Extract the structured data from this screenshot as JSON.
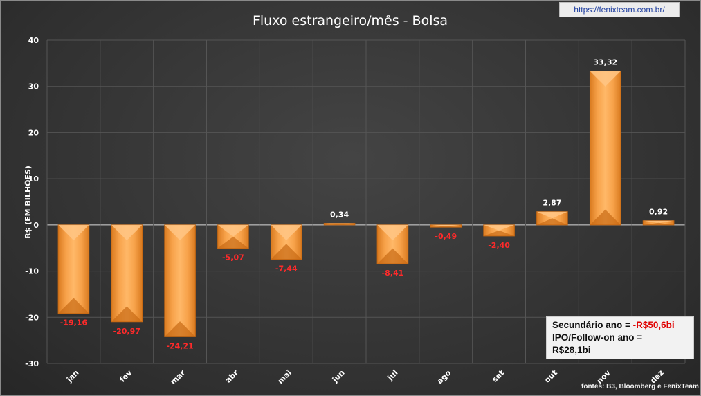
{
  "url": "https://fenixteam.com.br/",
  "source": "fontes: B3, Bloomberg e FenixTeam",
  "info_box": {
    "line1_prefix": "Secundário ano = ",
    "line1_value": "-R$50,6bi",
    "line2": "IPO/Follow-on ano =",
    "line3": "R$28,1bi"
  },
  "colors": {
    "bar": "#f2973a",
    "bar_light": "#ffc585",
    "bar_dark": "#c86a14",
    "negative_label": "#ff2a2a",
    "positive_label": "#ffffff",
    "background": "#353535",
    "grid": "#555555"
  },
  "chart_data": {
    "type": "bar",
    "title": "Fluxo estrangeiro/mês - Bolsa",
    "ylabel": "R$ (EM BILHÕES)",
    "xlabel": "",
    "ylim": [
      -30,
      40
    ],
    "yticks": [
      40,
      30,
      20,
      10,
      0,
      -10,
      -20,
      -30
    ],
    "grid": true,
    "categories": [
      "jan",
      "fev",
      "mar",
      "abr",
      "mai",
      "jun",
      "jul",
      "ago",
      "set",
      "out",
      "nov",
      "dez"
    ],
    "values": [
      -19.16,
      -20.97,
      -24.21,
      -5.07,
      -7.44,
      0.34,
      -8.41,
      -0.49,
      -2.4,
      2.87,
      33.32,
      0.92
    ],
    "labels": [
      "-19,16",
      "-20,97",
      "-24,21",
      "-5,07",
      "-7,44",
      "0,34",
      "-8,41",
      "-0,49",
      "-2,40",
      "2,87",
      "33,32",
      "0,92"
    ]
  }
}
